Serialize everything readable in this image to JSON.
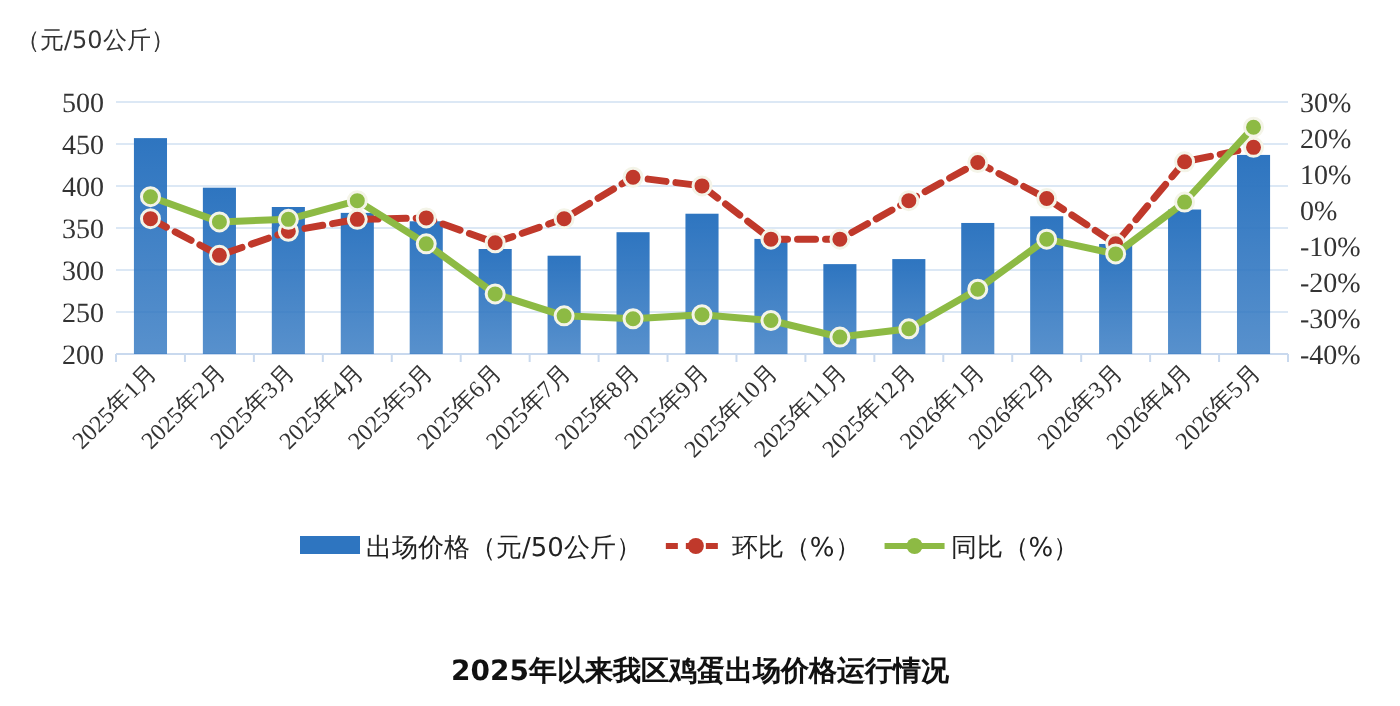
{
  "chart_data": {
    "type": "bar",
    "title": "2025年以来我区鸡蛋出场价格运行情况",
    "ylabel": "（元/50公斤）",
    "categories": [
      "2025年1月",
      "2025年2月",
      "2025年3月",
      "2025年4月",
      "2025年5月",
      "2025年6月",
      "2025年7月",
      "2025年8月",
      "2025年9月",
      "2025年10月",
      "2025年11月",
      "2025年12月",
      "2026年1月",
      "2026年2月",
      "2026年3月",
      "2026年4月",
      "2026年5月"
    ],
    "series": [
      {
        "name": "出场价格（元/50公斤）",
        "color": "#2e75c0",
        "values": [
          457,
          398,
          375,
          368,
          358,
          325,
          317,
          345,
          367,
          337,
          307,
          313,
          356,
          364,
          331,
          372,
          437
        ]
      },
      {
        "name": "环比（%）",
        "type": "line",
        "axis": "y2",
        "color": "#c0392b",
        "line_style": "dashed",
        "marker": "circle",
        "values": [
          -2.4,
          -12.6,
          -5.9,
          -2.6,
          -2.2,
          -9.1,
          -2.4,
          9.1,
          6.7,
          -8.1,
          -8.1,
          2.6,
          13.2,
          3.2,
          -9.4,
          13.4,
          17.4
        ]
      },
      {
        "name": "同比（%）",
        "type": "line",
        "axis": "y2",
        "color": "#8dba44",
        "line_style": "solid",
        "marker": "circle",
        "values": [
          3.7,
          -3.3,
          -2.6,
          2.6,
          -9.4,
          -23.3,
          -29.4,
          -30.2,
          -29.1,
          -30.7,
          -35.3,
          -33,
          -22,
          -8.1,
          -12.2,
          2.2,
          23
        ]
      }
    ],
    "ylim": [
      200,
      500
    ],
    "yticks": [
      200,
      250,
      300,
      350,
      400,
      450,
      500
    ],
    "y2lim": [
      -40,
      30
    ],
    "y2ticks": [
      {
        "value": -40,
        "label": "-40%"
      },
      {
        "value": -30,
        "label": "-30%"
      },
      {
        "value": -20,
        "label": "-20%"
      },
      {
        "value": -10,
        "label": "-10%"
      },
      {
        "value": 0,
        "label": "0%"
      },
      {
        "value": 10,
        "label": "10%"
      },
      {
        "value": 20,
        "label": "20%"
      },
      {
        "value": 30,
        "label": "30%"
      }
    ],
    "grid": "y",
    "legend": "bottom"
  }
}
